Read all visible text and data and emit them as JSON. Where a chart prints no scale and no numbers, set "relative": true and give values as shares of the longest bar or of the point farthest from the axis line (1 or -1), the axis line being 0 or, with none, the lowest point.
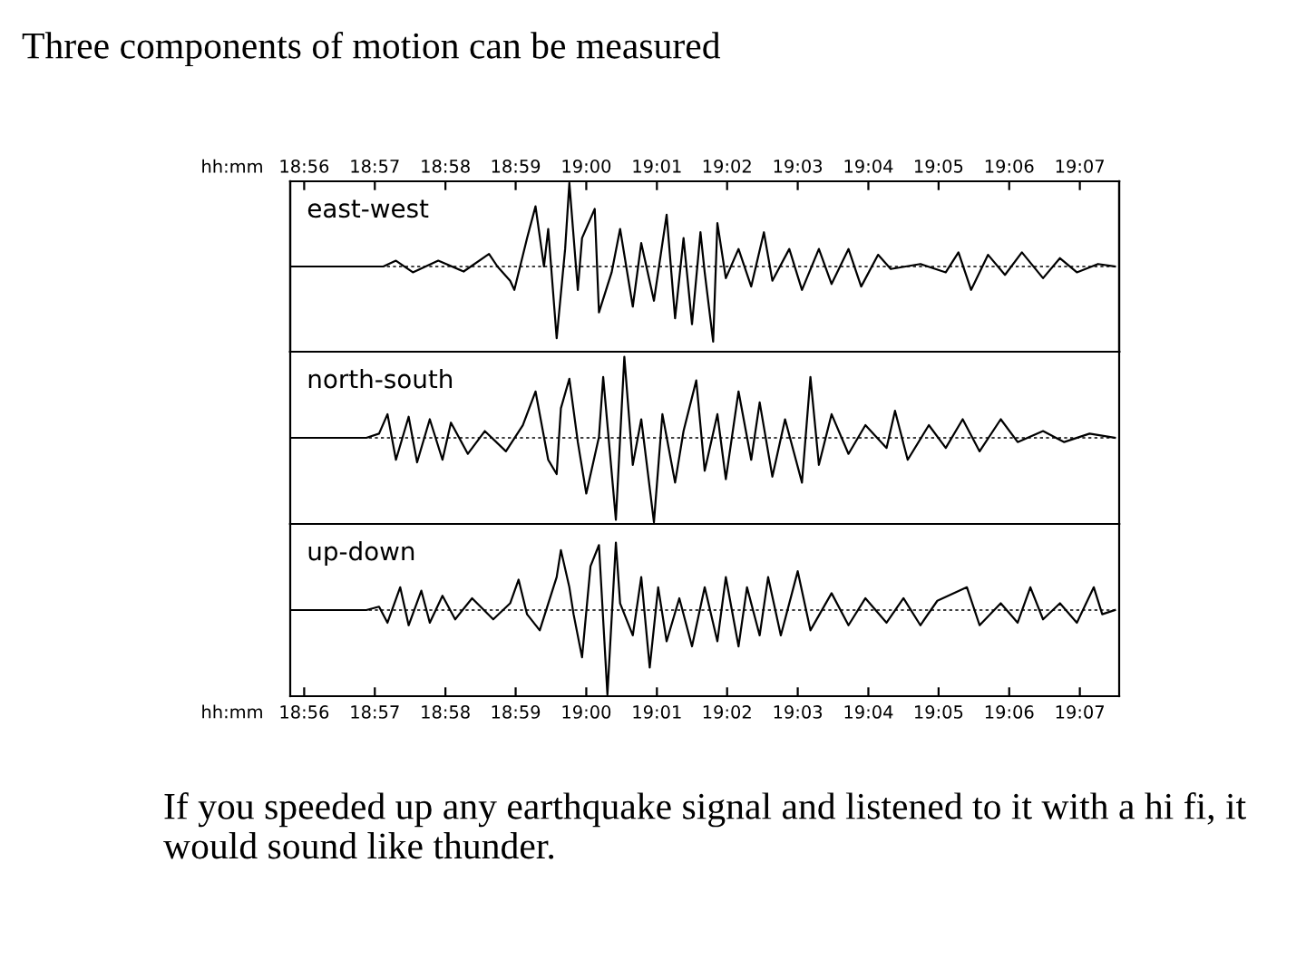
{
  "chart_data": [
    {
      "type": "line",
      "title": "east-west",
      "relative": true,
      "ref_lines": [
        {
          "axis": "y",
          "value": 0,
          "line_style": "dashed"
        }
      ],
      "xlim": [
        18.93,
        19.126
      ],
      "x2lim": [
        18.93,
        19.126
      ],
      "x2label": "hh:mm",
      "tick_labels": false,
      "color": "#000000",
      "x2ticks": [
        {
          "value": 18.9333,
          "label": "18:56"
        },
        {
          "value": 18.95,
          "label": "18:57"
        },
        {
          "value": 18.9667,
          "label": "18:58"
        },
        {
          "value": 18.9833,
          "label": "18:59"
        },
        {
          "value": 19.0,
          "label": "19:00"
        },
        {
          "value": 19.0167,
          "label": "19:01"
        },
        {
          "value": 19.0333,
          "label": "19:02"
        },
        {
          "value": 19.05,
          "label": "19:03"
        },
        {
          "value": 19.0667,
          "label": "19:04"
        },
        {
          "value": 19.0833,
          "label": "19:05"
        },
        {
          "value": 19.1,
          "label": "19:06"
        },
        {
          "value": 19.1167,
          "label": "19:07"
        }
      ],
      "x": [
        18.93,
        18.952,
        18.955,
        18.959,
        18.965,
        18.971,
        18.977,
        18.979,
        18.982,
        18.983,
        18.986,
        18.988,
        18.99,
        18.991,
        18.993,
        18.995,
        18.996,
        18.998,
        18.999,
        19.002,
        19.003,
        19.006,
        19.008,
        19.011,
        19.013,
        19.016,
        19.019,
        19.021,
        19.023,
        19.025,
        19.027,
        19.028,
        19.03,
        19.031,
        19.033,
        19.036,
        19.039,
        19.042,
        19.044,
        19.048,
        19.051,
        19.055,
        19.058,
        19.062,
        19.065,
        19.069,
        19.072,
        19.079,
        19.085,
        19.088,
        19.091,
        19.095,
        19.099,
        19.103,
        19.108,
        19.112,
        19.116,
        19.121,
        19.125
      ],
      "values": [
        0,
        0,
        0.07,
        -0.07,
        0.07,
        -0.06,
        0.15,
        0,
        -0.17,
        -0.28,
        0.34,
        0.72,
        0,
        0.45,
        -0.86,
        0.21,
        1.0,
        -0.28,
        0.34,
        0.69,
        -0.55,
        -0.07,
        0.45,
        -0.48,
        0.28,
        -0.41,
        0.62,
        -0.62,
        0.34,
        -0.69,
        0.41,
        -0.07,
        -0.9,
        0.52,
        -0.14,
        0.21,
        -0.24,
        0.41,
        -0.17,
        0.21,
        -0.28,
        0.21,
        -0.21,
        0.21,
        -0.24,
        0.14,
        -0.03,
        0.03,
        -0.07,
        0.17,
        -0.28,
        0.14,
        -0.1,
        0.17,
        -0.14,
        0.1,
        -0.07,
        0.03,
        0
      ]
    },
    {
      "type": "line",
      "title": "north-south",
      "relative": true,
      "ref_lines": [
        {
          "axis": "y",
          "value": 0,
          "line_style": "dashed"
        }
      ],
      "xlim": [
        18.93,
        19.126
      ],
      "tick_labels": false,
      "color": "#000000",
      "x": [
        18.93,
        18.948,
        18.951,
        18.953,
        18.955,
        18.958,
        18.96,
        18.963,
        18.966,
        18.968,
        18.972,
        18.976,
        18.981,
        18.985,
        18.988,
        18.991,
        18.993,
        18.994,
        18.996,
        18.998,
        19.0,
        19.003,
        19.004,
        19.007,
        19.009,
        19.011,
        19.013,
        19.016,
        19.018,
        19.021,
        19.023,
        19.026,
        19.028,
        19.031,
        19.033,
        19.036,
        19.039,
        19.041,
        19.044,
        19.047,
        19.051,
        19.053,
        19.055,
        19.058,
        19.062,
        19.066,
        19.071,
        19.073,
        19.076,
        19.081,
        19.085,
        19.089,
        19.093,
        19.098,
        19.102,
        19.108,
        19.113,
        19.119,
        19.125
      ],
      "values": [
        0,
        0,
        0.05,
        0.28,
        -0.26,
        0.25,
        -0.29,
        0.22,
        -0.26,
        0.18,
        -0.19,
        0.08,
        -0.16,
        0.15,
        0.55,
        -0.26,
        -0.43,
        0.35,
        0.7,
        -0.05,
        -0.66,
        0.01,
        0.72,
        -0.97,
        0.96,
        -0.32,
        0.22,
        -1.0,
        0.28,
        -0.53,
        0.08,
        0.68,
        -0.39,
        0.28,
        -0.49,
        0.55,
        -0.26,
        0.42,
        -0.46,
        0.22,
        -0.53,
        0.72,
        -0.32,
        0.28,
        -0.19,
        0.15,
        -0.12,
        0.32,
        -0.26,
        0.15,
        -0.12,
        0.22,
        -0.16,
        0.22,
        -0.05,
        0.08,
        -0.05,
        0.05,
        0
      ]
    },
    {
      "type": "line",
      "title": "up-down",
      "relative": true,
      "ref_lines": [
        {
          "axis": "y",
          "value": 0,
          "line_style": "dashed"
        }
      ],
      "xlim": [
        18.93,
        19.126
      ],
      "xlabel": "hh:mm",
      "tick_labels": "x",
      "color": "#000000",
      "xticks": [
        {
          "value": 18.9333,
          "label": "18:56"
        },
        {
          "value": 18.95,
          "label": "18:57"
        },
        {
          "value": 18.9667,
          "label": "18:58"
        },
        {
          "value": 18.9833,
          "label": "18:59"
        },
        {
          "value": 19.0,
          "label": "19:00"
        },
        {
          "value": 19.0167,
          "label": "19:01"
        },
        {
          "value": 19.0333,
          "label": "19:02"
        },
        {
          "value": 19.05,
          "label": "19:03"
        },
        {
          "value": 19.0667,
          "label": "19:04"
        },
        {
          "value": 19.0833,
          "label": "19:05"
        },
        {
          "value": 19.1,
          "label": "19:06"
        },
        {
          "value": 19.1167,
          "label": "19:07"
        }
      ],
      "x": [
        18.93,
        18.948,
        18.951,
        18.953,
        18.956,
        18.958,
        18.961,
        18.963,
        18.966,
        18.969,
        18.973,
        18.978,
        18.982,
        18.984,
        18.986,
        18.989,
        18.993,
        18.994,
        18.996,
        18.997,
        18.999,
        19.001,
        19.003,
        19.005,
        19.007,
        19.008,
        19.011,
        19.013,
        19.015,
        19.017,
        19.019,
        19.022,
        19.025,
        19.028,
        19.031,
        19.033,
        19.036,
        19.038,
        19.041,
        19.043,
        19.046,
        19.05,
        19.053,
        19.058,
        19.062,
        19.066,
        19.071,
        19.075,
        19.079,
        19.083,
        19.09,
        19.093,
        19.098,
        19.102,
        19.105,
        19.108,
        19.112,
        19.116,
        19.12,
        19.122,
        19.125
      ],
      "values": [
        0,
        0,
        0.04,
        -0.15,
        0.27,
        -0.18,
        0.23,
        -0.15,
        0.17,
        -0.11,
        0.14,
        -0.11,
        0.08,
        0.36,
        -0.05,
        -0.24,
        0.39,
        0.71,
        0.27,
        -0.05,
        -0.56,
        0.52,
        0.77,
        -1.0,
        0.8,
        0.08,
        -0.3,
        0.39,
        -0.68,
        0.27,
        -0.37,
        0.14,
        -0.43,
        0.27,
        -0.37,
        0.39,
        -0.43,
        0.27,
        -0.3,
        0.39,
        -0.3,
        0.46,
        -0.24,
        0.2,
        -0.18,
        0.14,
        -0.15,
        0.14,
        -0.18,
        0.11,
        0.27,
        -0.18,
        0.08,
        -0.15,
        0.27,
        -0.11,
        0.08,
        -0.15,
        0.27,
        -0.05,
        0
      ]
    },
    {
      "type": "other",
      "title": "Three components of motion can be measured",
      "annotations": [
        "If you speeded up any earthquake signal and listened to it with a hi fi, it would sound like thunder."
      ]
    }
  ]
}
